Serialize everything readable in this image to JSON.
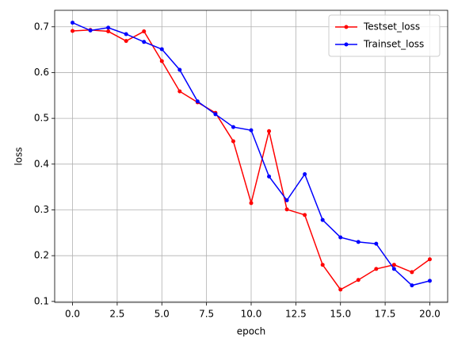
{
  "chart_data": {
    "type": "line",
    "x_label": "epoch",
    "y_label": "loss",
    "x": [
      0,
      1,
      2,
      3,
      4,
      5,
      6,
      7,
      8,
      9,
      10,
      11,
      12,
      13,
      14,
      15,
      16,
      17,
      18,
      19,
      20
    ],
    "series": [
      {
        "name": "Testset_loss",
        "color": "#ff0000",
        "values": [
          0.691,
          0.693,
          0.69,
          0.669,
          0.69,
          0.625,
          0.559,
          0.535,
          0.512,
          0.45,
          0.315,
          0.472,
          0.301,
          0.289,
          0.18,
          0.126,
          0.147,
          0.171,
          0.18,
          0.164,
          0.192
        ]
      },
      {
        "name": "Trainset_loss",
        "color": "#0000ff",
        "values": [
          0.709,
          0.692,
          0.698,
          0.684,
          0.667,
          0.651,
          0.606,
          0.537,
          0.509,
          0.481,
          0.474,
          0.373,
          0.321,
          0.378,
          0.278,
          0.24,
          0.23,
          0.226,
          0.171,
          0.135,
          0.145
        ]
      }
    ],
    "xlim": [
      -1,
      21
    ],
    "ylim": [
      0.098,
      0.736
    ],
    "xticks": [
      {
        "value": 0,
        "label": "0.0"
      },
      2.5,
      {
        "value": 5,
        "label": "5.0"
      },
      7.5,
      {
        "value": 10,
        "label": "10.0"
      },
      12.5,
      {
        "value": 15,
        "label": "15.0"
      },
      17.5,
      {
        "value": 20,
        "label": "20.0"
      }
    ],
    "yticks": [
      0.1,
      0.2,
      0.3,
      0.4,
      0.5,
      0.6,
      0.7
    ],
    "grid": true,
    "legend": "upper right"
  }
}
